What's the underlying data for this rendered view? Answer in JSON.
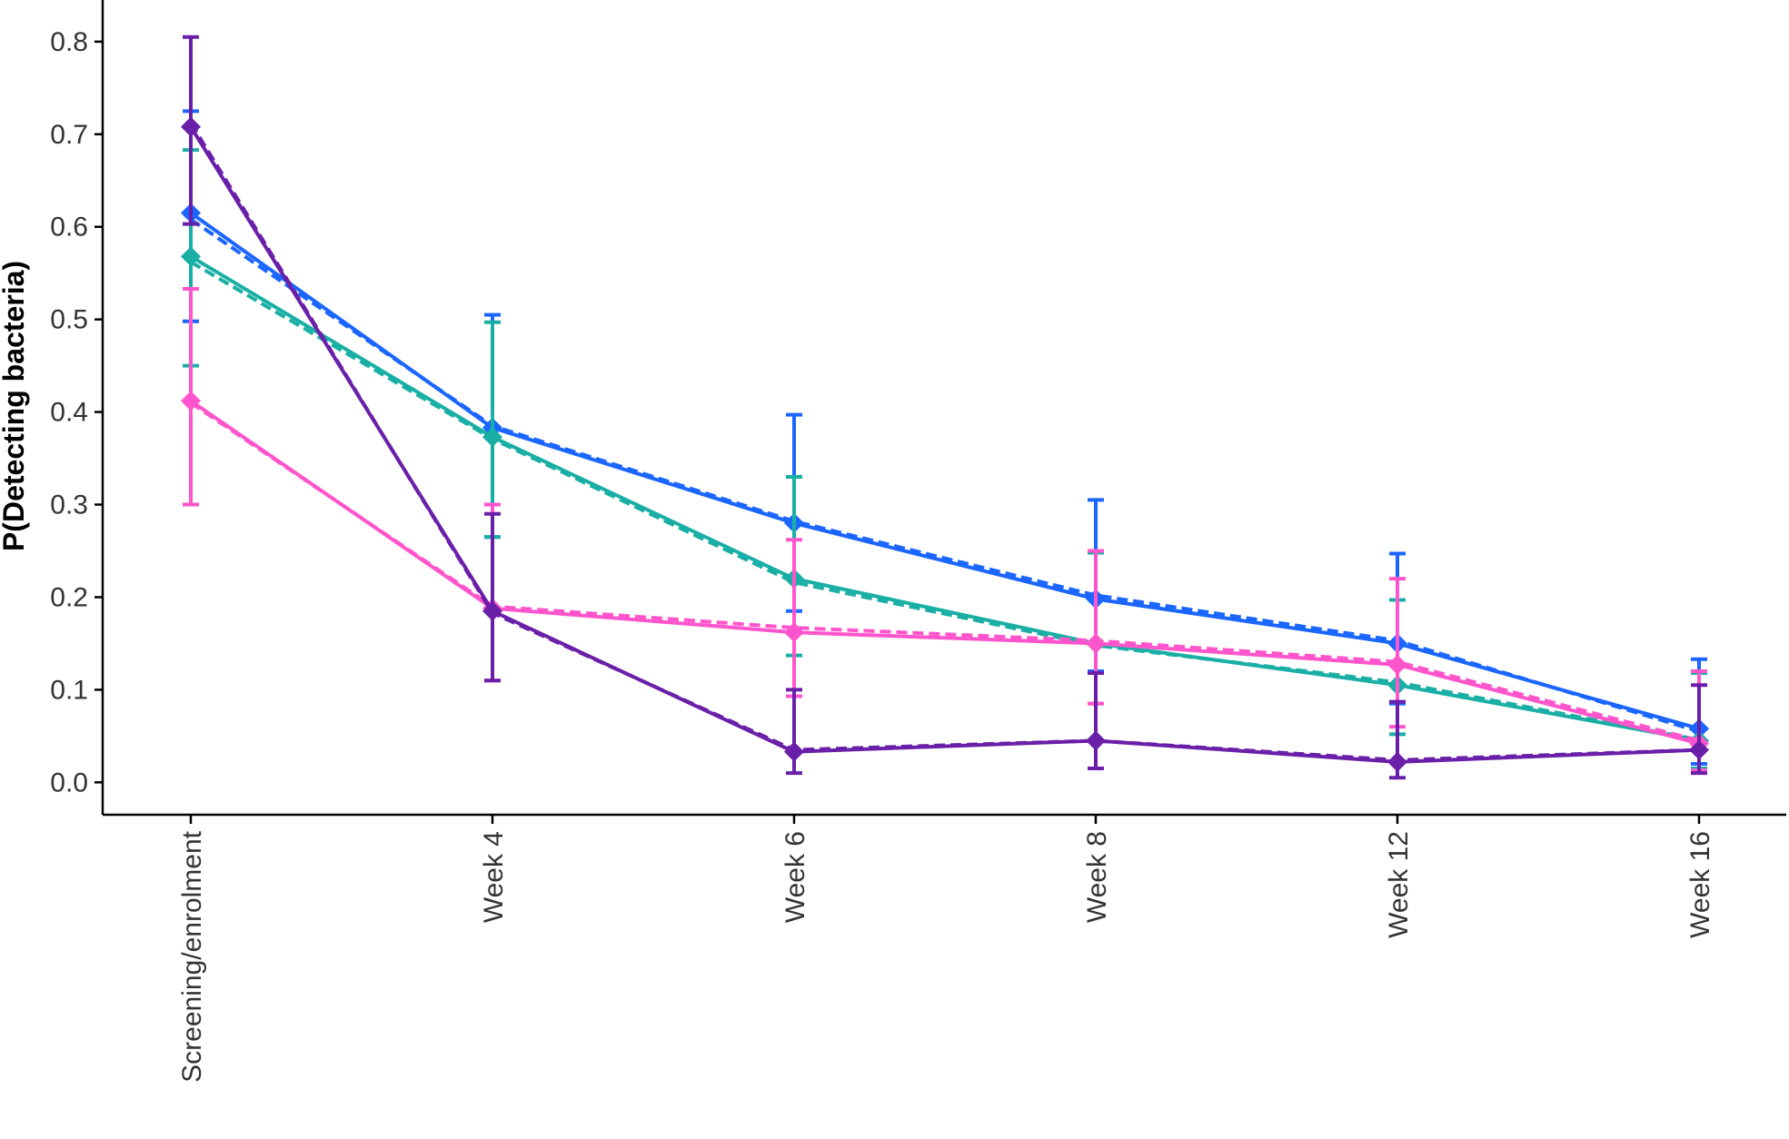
{
  "chart_data": {
    "type": "line",
    "title": "",
    "ylabel": "P(Detecting bacteria)",
    "xlabel": "",
    "ylim": [
      -0.035,
      0.845
    ],
    "yticks": [
      0.0,
      0.1,
      0.2,
      0.3,
      0.4,
      0.5,
      0.6,
      0.7,
      0.8
    ],
    "ytick_labels": [
      "0.0",
      "0.1",
      "0.2",
      "0.3",
      "0.4",
      "0.5",
      "0.6",
      "0.7",
      "0.8"
    ],
    "categories": [
      "Screening/enrolment",
      "Week 4",
      "Week 6",
      "Week 8",
      "Week 12",
      "Week 16"
    ],
    "grid": false,
    "legend": "none",
    "series": [
      {
        "color": "#1a66ff",
        "values": [
          0.615,
          0.383,
          0.28,
          0.198,
          0.15,
          0.058
        ],
        "fitted": [
          0.608,
          0.385,
          0.282,
          0.202,
          0.153,
          0.055
        ],
        "ci_low": [
          0.498,
          0.265,
          0.185,
          0.12,
          0.085,
          0.02
        ],
        "ci_high": [
          0.725,
          0.505,
          0.397,
          0.305,
          0.247,
          0.133
        ]
      },
      {
        "color": "#1aafa5",
        "values": [
          0.568,
          0.373,
          0.22,
          0.15,
          0.105,
          0.045
        ],
        "fitted": [
          0.562,
          0.371,
          0.216,
          0.148,
          0.108,
          0.046
        ],
        "ci_low": [
          0.45,
          0.265,
          0.137,
          0.085,
          0.052,
          0.015
        ],
        "ci_high": [
          0.683,
          0.497,
          0.33,
          0.248,
          0.197,
          0.118
        ]
      },
      {
        "color": "#ff55cc",
        "values": [
          0.412,
          0.188,
          0.162,
          0.15,
          0.127,
          0.042
        ],
        "fitted": [
          0.41,
          0.19,
          0.167,
          0.153,
          0.13,
          0.045
        ],
        "ci_low": [
          0.3,
          0.11,
          0.093,
          0.085,
          0.06,
          0.013
        ],
        "ci_high": [
          0.533,
          0.3,
          0.262,
          0.25,
          0.22,
          0.12
        ]
      },
      {
        "color": "#6a1fa8",
        "values": [
          0.708,
          0.185,
          0.033,
          0.045,
          0.022,
          0.035
        ],
        "fitted": [
          0.712,
          0.183,
          0.035,
          0.045,
          0.024,
          0.035
        ],
        "ci_low": [
          0.603,
          0.11,
          0.01,
          0.015,
          0.005,
          0.01
        ],
        "ci_high": [
          0.805,
          0.29,
          0.1,
          0.118,
          0.087,
          0.105
        ]
      }
    ]
  }
}
